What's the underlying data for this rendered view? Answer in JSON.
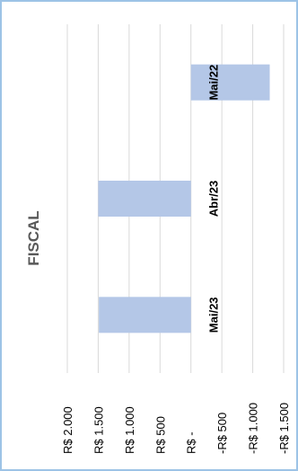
{
  "chart_data": {
    "type": "bar",
    "orientation": "horizontal",
    "title": "FISCAL",
    "categories": [
      "Mai/22",
      "Abr/23",
      "Mai/23"
    ],
    "values": [
      -1275,
      1500,
      1490
    ],
    "color": "#b4c7e7",
    "ylim": [
      -1500,
      2000
    ],
    "yticks": [
      {
        "value": 2000,
        "label": "R$ 2.000"
      },
      {
        "value": 1500,
        "label": "R$ 1.500"
      },
      {
        "value": 1000,
        "label": "R$ 1.000"
      },
      {
        "value": 500,
        "label": "R$ 500"
      },
      {
        "value": 0,
        "label": "R$ -"
      },
      {
        "value": -500,
        "label": "-R$ 500"
      },
      {
        "value": -1000,
        "label": "-R$ 1.000"
      },
      {
        "value": -1500,
        "label": "-R$ 1.500"
      }
    ],
    "grid": true
  }
}
